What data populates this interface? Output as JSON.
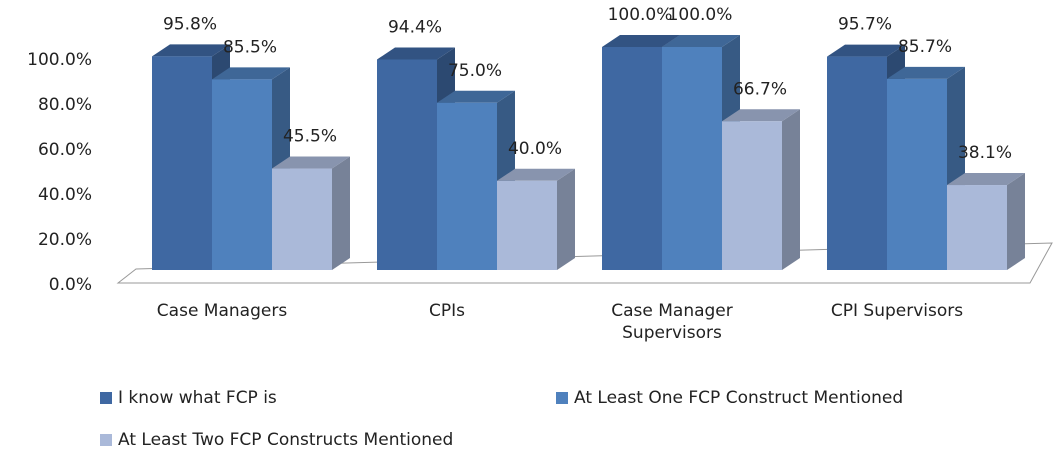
{
  "chart_data": {
    "type": "bar3d",
    "categories": [
      "Case Managers",
      "CPIs",
      "Case Manager Supervisors",
      "CPI Supervisors"
    ],
    "series": [
      {
        "name": "I know what FCP is",
        "color": "#3f68a2",
        "values": [
          95.8,
          94.4,
          100,
          95.7
        ],
        "value_labels": [
          "95.8%",
          "94.4%",
          "100.0%",
          "95.7%"
        ]
      },
      {
        "name": "At Least One FCP Construct Mentioned",
        "color": "#4f81bd",
        "values": [
          85.5,
          75,
          100,
          85.7
        ],
        "value_labels": [
          "85.5%",
          "75.0%",
          "100.0%",
          "85.7%"
        ]
      },
      {
        "name": "At Least Two FCP Constructs Mentioned",
        "color": "#aab9d9",
        "values": [
          45.5,
          40,
          66.7,
          38.1
        ],
        "value_labels": [
          "45.5%",
          "40.0%",
          "66.7%",
          "38.1%"
        ]
      }
    ],
    "ylim": [
      0,
      100
    ],
    "yticks": [
      {
        "value": 0,
        "label": "0.0%"
      },
      {
        "value": 20,
        "label": "20.0%"
      },
      {
        "value": 40,
        "label": "40.0%"
      },
      {
        "value": 60,
        "label": "60.0%"
      },
      {
        "value": 80,
        "label": "80.0%"
      },
      {
        "value": 100,
        "label": "100.0%"
      }
    ],
    "grid": false,
    "legend": "bottom"
  }
}
